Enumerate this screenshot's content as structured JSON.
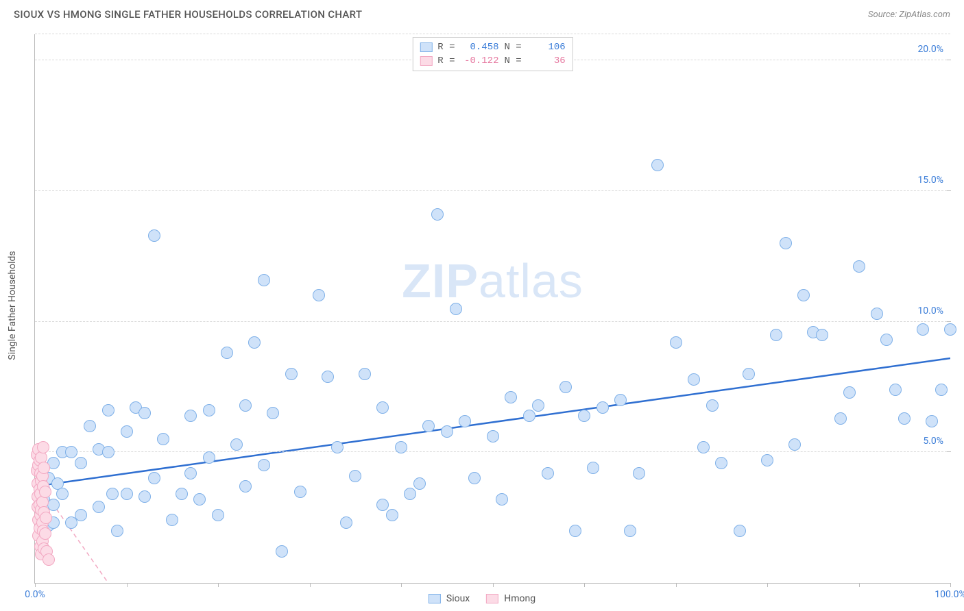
{
  "header": {
    "title": "SIOUX VS HMONG SINGLE FATHER HOUSEHOLDS CORRELATION CHART",
    "source": "Source: ZipAtlas.com"
  },
  "chart": {
    "type": "scatter",
    "ylabel": "Single Father Households",
    "watermark_a": "ZIP",
    "watermark_b": "atlas",
    "background_color": "#ffffff",
    "grid_color": "#d8d8d8",
    "axis_color": "#bbbbbb",
    "xlim": [
      0,
      100
    ],
    "ylim": [
      0,
      21
    ],
    "xticks": [
      0,
      10,
      20,
      30,
      40,
      50,
      60,
      70,
      80,
      90,
      100
    ],
    "xtick_labels": {
      "0": "0.0%",
      "100": "100.0%"
    },
    "yticks": [
      5,
      10,
      15,
      20
    ],
    "ytick_labels": {
      "5": "5.0%",
      "10": "10.0%",
      "15": "15.0%",
      "20": "20.0%"
    },
    "ygrid": [
      5,
      10,
      15,
      20,
      21
    ],
    "point_radius": 9,
    "series": [
      {
        "name": "Sioux",
        "fill": "#cfe2f9",
        "stroke": "#7eb0e8",
        "trend": {
          "x1": 0,
          "y1": 3.7,
          "x2": 100,
          "y2": 8.6,
          "color": "#2f6fd1",
          "width": 2.5,
          "dash": "none"
        },
        "stats": {
          "R": "0.458",
          "N": "106"
        },
        "points": [
          [
            1,
            3.6
          ],
          [
            1,
            3.2
          ],
          [
            1.5,
            4.0
          ],
          [
            1.5,
            2.2
          ],
          [
            2,
            4.6
          ],
          [
            2,
            3.0
          ],
          [
            2,
            2.3
          ],
          [
            2.5,
            3.8
          ],
          [
            3,
            5.0
          ],
          [
            3,
            3.4
          ],
          [
            4,
            5.0
          ],
          [
            4,
            2.3
          ],
          [
            5,
            2.6
          ],
          [
            5,
            4.6
          ],
          [
            6,
            6.0
          ],
          [
            7,
            2.9
          ],
          [
            7,
            5.1
          ],
          [
            8,
            6.6
          ],
          [
            8,
            5.0
          ],
          [
            8.5,
            3.4
          ],
          [
            9,
            2.0
          ],
          [
            10,
            3.4
          ],
          [
            10,
            5.8
          ],
          [
            11,
            6.7
          ],
          [
            12,
            6.5
          ],
          [
            12,
            3.3
          ],
          [
            13,
            4.0
          ],
          [
            13,
            13.3
          ],
          [
            14,
            5.5
          ],
          [
            15,
            2.4
          ],
          [
            16,
            3.4
          ],
          [
            17,
            6.4
          ],
          [
            17,
            4.2
          ],
          [
            18,
            3.2
          ],
          [
            19,
            6.6
          ],
          [
            19,
            4.8
          ],
          [
            20,
            2.6
          ],
          [
            21,
            8.8
          ],
          [
            22,
            5.3
          ],
          [
            23,
            6.8
          ],
          [
            23,
            3.7
          ],
          [
            24,
            9.2
          ],
          [
            25,
            4.5
          ],
          [
            25,
            11.6
          ],
          [
            26,
            6.5
          ],
          [
            27,
            1.2
          ],
          [
            28,
            8.0
          ],
          [
            29,
            3.5
          ],
          [
            31,
            11.0
          ],
          [
            32,
            7.9
          ],
          [
            33,
            5.2
          ],
          [
            34,
            2.3
          ],
          [
            35,
            4.1
          ],
          [
            36,
            8.0
          ],
          [
            38,
            6.7
          ],
          [
            38,
            3.0
          ],
          [
            39,
            2.6
          ],
          [
            40,
            5.2
          ],
          [
            41,
            3.4
          ],
          [
            42,
            3.8
          ],
          [
            43,
            6.0
          ],
          [
            44,
            14.1
          ],
          [
            45,
            5.8
          ],
          [
            46,
            10.5
          ],
          [
            47,
            6.2
          ],
          [
            48,
            4.0
          ],
          [
            50,
            5.6
          ],
          [
            51,
            3.2
          ],
          [
            52,
            7.1
          ],
          [
            54,
            6.4
          ],
          [
            55,
            6.8
          ],
          [
            56,
            4.2
          ],
          [
            58,
            7.5
          ],
          [
            59,
            2.0
          ],
          [
            60,
            6.4
          ],
          [
            61,
            4.4
          ],
          [
            62,
            6.7
          ],
          [
            64,
            7.0
          ],
          [
            65,
            2.0
          ],
          [
            66,
            4.2
          ],
          [
            68,
            16.0
          ],
          [
            70,
            9.2
          ],
          [
            72,
            7.8
          ],
          [
            73,
            5.2
          ],
          [
            74,
            6.8
          ],
          [
            75,
            4.6
          ],
          [
            77,
            2.0
          ],
          [
            78,
            8.0
          ],
          [
            80,
            4.7
          ],
          [
            81,
            9.5
          ],
          [
            82,
            13.0
          ],
          [
            83,
            5.3
          ],
          [
            84,
            11.0
          ],
          [
            85,
            9.6
          ],
          [
            86,
            9.5
          ],
          [
            88,
            6.3
          ],
          [
            89,
            7.3
          ],
          [
            90,
            12.1
          ],
          [
            92,
            10.3
          ],
          [
            93,
            9.3
          ],
          [
            94,
            7.4
          ],
          [
            95,
            6.3
          ],
          [
            97,
            9.7
          ],
          [
            98,
            6.2
          ],
          [
            99,
            7.4
          ],
          [
            100,
            9.7
          ]
        ]
      },
      {
        "name": "Hmong",
        "fill": "#fcdbe6",
        "stroke": "#f2a8c2",
        "trend": {
          "x1": 0,
          "y1": 4.0,
          "x2": 8,
          "y2": 0,
          "color": "#f2a8c2",
          "width": 1.5,
          "dash": "6,5"
        },
        "stats": {
          "R": "-0.122",
          "N": "36"
        },
        "points": [
          [
            0.2,
            4.9
          ],
          [
            0.2,
            4.3
          ],
          [
            0.3,
            3.8
          ],
          [
            0.3,
            3.3
          ],
          [
            0.3,
            2.9
          ],
          [
            0.4,
            5.1
          ],
          [
            0.4,
            4.5
          ],
          [
            0.4,
            2.4
          ],
          [
            0.4,
            1.8
          ],
          [
            0.5,
            4.7
          ],
          [
            0.5,
            3.6
          ],
          [
            0.5,
            3.0
          ],
          [
            0.5,
            2.1
          ],
          [
            0.6,
            4.2
          ],
          [
            0.6,
            3.4
          ],
          [
            0.6,
            2.6
          ],
          [
            0.6,
            1.4
          ],
          [
            0.7,
            4.8
          ],
          [
            0.7,
            3.9
          ],
          [
            0.7,
            2.8
          ],
          [
            0.7,
            1.1
          ],
          [
            0.8,
            4.1
          ],
          [
            0.8,
            3.1
          ],
          [
            0.8,
            2.3
          ],
          [
            0.8,
            1.6
          ],
          [
            0.9,
            5.2
          ],
          [
            0.9,
            3.7
          ],
          [
            0.9,
            2.0
          ],
          [
            1.0,
            4.4
          ],
          [
            1.0,
            2.7
          ],
          [
            1.0,
            1.3
          ],
          [
            1.1,
            3.5
          ],
          [
            1.1,
            1.9
          ],
          [
            1.2,
            2.5
          ],
          [
            1.3,
            1.2
          ],
          [
            1.5,
            0.9
          ]
        ]
      }
    ]
  },
  "legendTop": {
    "r_label": "R =",
    "n_label": "N ="
  },
  "legendBottom": {
    "sioux": "Sioux",
    "hmong": "Hmong"
  }
}
